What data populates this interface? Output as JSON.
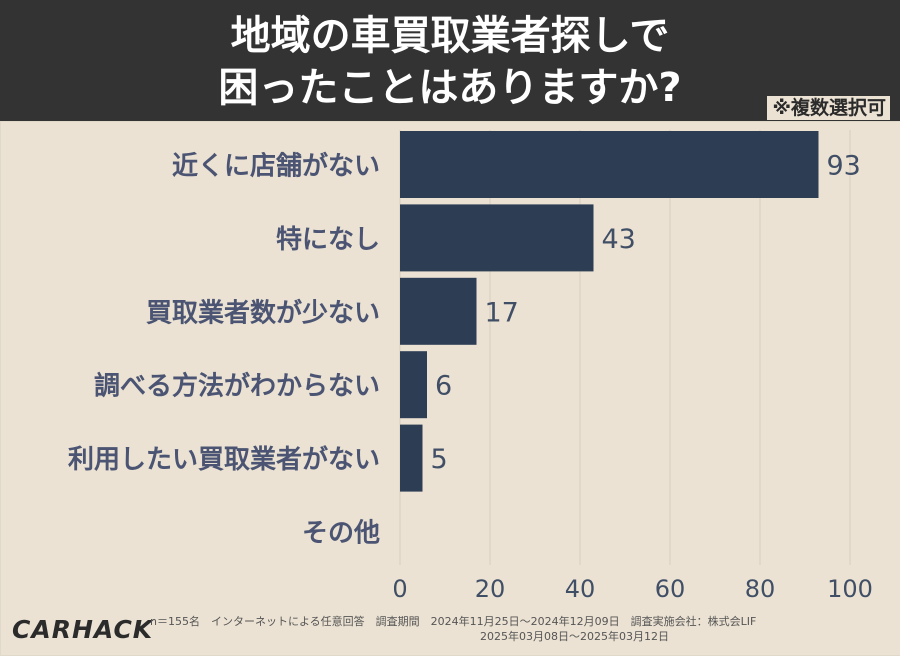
{
  "title_line1": "地域の車買取業者探しで",
  "title_line2": "困ったことはありますか?",
  "note": "※複数選択可",
  "chart_data": {
    "type": "bar",
    "orientation": "horizontal",
    "categories": [
      "近くに店舗がない",
      "特になし",
      "買取業者数が少ない",
      "調べる方法がわからない",
      "利用したい買取業者がない",
      "その他"
    ],
    "values": [
      93,
      43,
      17,
      6,
      5,
      0
    ],
    "value_labels": [
      "93",
      "43",
      "17",
      "6",
      "5",
      ""
    ],
    "xlim": [
      0,
      100
    ],
    "xticks": [
      0,
      20,
      40,
      60,
      80,
      100
    ],
    "grid": true,
    "bar_color": "#2d3e54"
  },
  "footer": {
    "logo": "CARHACK",
    "line1": "n＝155名　インターネットによる任意回答　調査期間　2024年11月25日〜2024年12月09日　調査実施会社：株式会LIF",
    "line2": "2025年03月08日〜2025年03月12日"
  }
}
